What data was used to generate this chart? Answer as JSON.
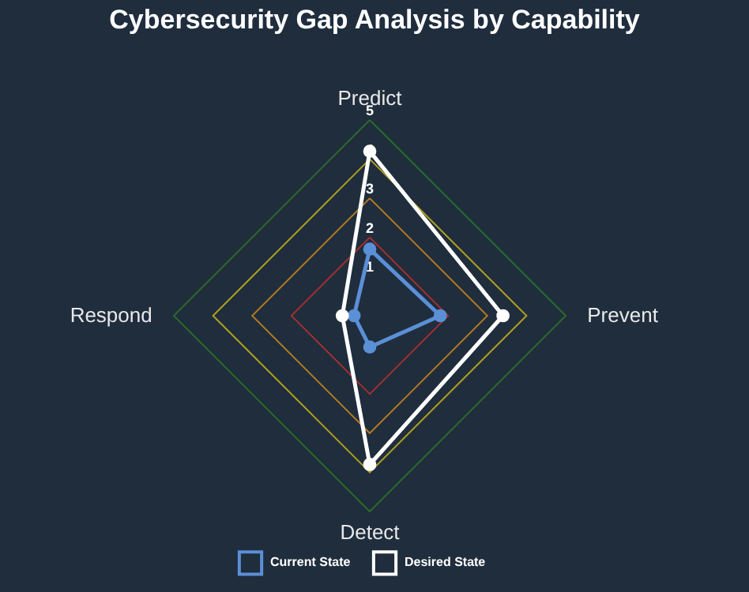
{
  "chart_data": {
    "type": "radar",
    "title": "Cybersecurity Gap Analysis by Capability",
    "categories": [
      "Predict",
      "Prevent",
      "Detect",
      "Respond"
    ],
    "series": [
      {
        "name": "Current State",
        "color": "#5b8fd6",
        "values": [
          1.7,
          1.8,
          0.8,
          0.4
        ]
      },
      {
        "name": "Desired State",
        "color": "#ffffff",
        "values": [
          4.2,
          3.4,
          3.8,
          0.7
        ]
      }
    ],
    "ylim": [
      0,
      5
    ],
    "yticks": [
      1,
      2,
      3,
      4,
      5
    ],
    "grid": true,
    "legend": "bottom",
    "marker": "circle"
  }
}
